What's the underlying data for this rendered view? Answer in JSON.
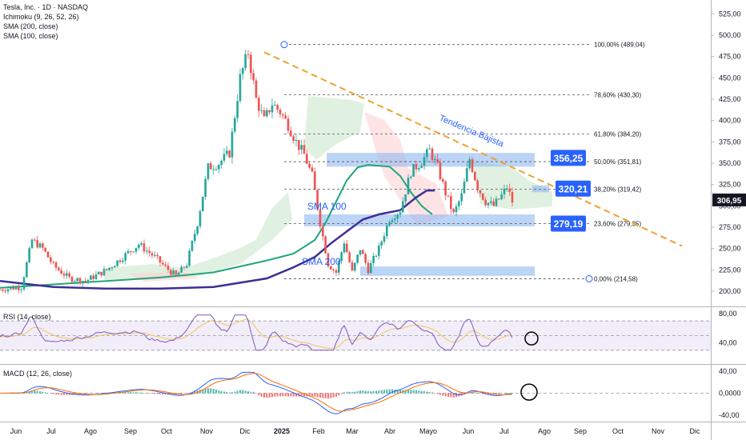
{
  "legend": {
    "main": "Tesla, Inc. · 1D · NASDAQ",
    "ichimoku": "Ichimoku (9, 26, 52, 26)",
    "sma200": "SMA (200, close)",
    "sma100": "SMA (100, close)",
    "rsi": "RSI (14, close)",
    "macd": "MACD (12, 26, close)"
  },
  "price_axis": {
    "ticks": [
      "525,00",
      "500,00",
      "475,00",
      "450,00",
      "425,00",
      "400,00",
      "375,00",
      "350,00",
      "325,00",
      "300,00",
      "275,00",
      "250,00",
      "225,00",
      "200,00"
    ],
    "current": "306,95"
  },
  "rsi_axis": {
    "ticks": [
      "80,00",
      "40,00"
    ]
  },
  "macd_axis": {
    "ticks": [
      "40,00",
      "0,0000",
      "-40,00"
    ]
  },
  "time_axis": {
    "labels": [
      "Jun",
      "Jul",
      "Ago",
      "Sep",
      "Oct",
      "Nov",
      "Dic",
      "2025",
      "Feb",
      "Mar",
      "Abr",
      "Mayo",
      "Jun",
      "Jul",
      "Ago",
      "Sep",
      "Oct",
      "Nov",
      "Dic"
    ]
  },
  "fib_levels": [
    {
      "label": "100,00% (489,04)",
      "value": 489.04
    },
    {
      "label": "78,60% (430,30)",
      "value": 430.3
    },
    {
      "label": "61,80% (384,20)",
      "value": 384.2
    },
    {
      "label": "50,00% (351,81)",
      "value": 351.81
    },
    {
      "label": "38,20% (319,42)",
      "value": 319.42
    },
    {
      "label": "23,60% (279,35)",
      "value": 279.35
    },
    {
      "label": "0,00% (214,58)",
      "value": 214.58
    }
  ],
  "zones": [
    {
      "label": "356,25",
      "low": 346,
      "high": 362,
      "label_value": 356.25
    },
    {
      "label": "320,21",
      "low": 316,
      "high": 324,
      "label_value": 320.21
    },
    {
      "label": "279,19",
      "low": 276,
      "high": 290,
      "label_value": 279.19
    },
    {
      "label": "",
      "low": 218,
      "high": 229
    }
  ],
  "annotations": {
    "trend": "Tendencia Bajista",
    "sma100": "SMA 100",
    "sma200": "SMA 200"
  },
  "colors": {
    "up": "#26a69a",
    "down": "#ef5350",
    "sma100": "#1fa67a",
    "sma200": "#3d2f94",
    "trendline": "#f0a030",
    "zone": "#90b8f0",
    "label_bg": "#2962ff",
    "rsi": "#7e57c2",
    "macd": "#2962ff",
    "signal": "#ff6d00",
    "cloud_green": "#c8e6c9",
    "cloud_red": "#ffcdd2"
  },
  "chart_data": {
    "type": "candlestick",
    "symbol": "Tesla, Inc. · 1D · NASDAQ",
    "ylim": [
      190,
      530
    ],
    "last_price": 306.95,
    "sma100_approx": [
      [
        0,
        204
      ],
      [
        20,
        208
      ],
      [
        40,
        212
      ],
      [
        60,
        216
      ],
      [
        80,
        222
      ],
      [
        100,
        236
      ],
      [
        110,
        244
      ],
      [
        118,
        260
      ],
      [
        122,
        280
      ],
      [
        126,
        305
      ],
      [
        130,
        330
      ],
      [
        134,
        345
      ],
      [
        138,
        348
      ],
      [
        146,
        346
      ],
      [
        150,
        335
      ],
      [
        154,
        316
      ],
      [
        158,
        300
      ],
      [
        162,
        290
      ]
    ],
    "sma200_approx": [
      [
        0,
        212
      ],
      [
        20,
        205
      ],
      [
        40,
        203
      ],
      [
        60,
        203
      ],
      [
        80,
        205
      ],
      [
        100,
        215
      ],
      [
        110,
        228
      ],
      [
        118,
        240
      ],
      [
        124,
        256
      ],
      [
        130,
        270
      ],
      [
        136,
        284
      ],
      [
        142,
        290
      ],
      [
        150,
        295
      ],
      [
        156,
        310
      ],
      [
        160,
        318
      ],
      [
        163,
        318
      ]
    ],
    "price_path": [
      [
        0,
        202
      ],
      [
        8,
        205
      ],
      [
        12,
        260
      ],
      [
        16,
        250
      ],
      [
        20,
        230
      ],
      [
        26,
        215
      ],
      [
        32,
        212
      ],
      [
        40,
        225
      ],
      [
        46,
        240
      ],
      [
        52,
        255
      ],
      [
        58,
        240
      ],
      [
        62,
        228
      ],
      [
        66,
        218
      ],
      [
        70,
        232
      ],
      [
        74,
        280
      ],
      [
        78,
        345
      ],
      [
        82,
        350
      ],
      [
        86,
        362
      ],
      [
        90,
        450
      ],
      [
        93,
        480
      ],
      [
        96,
        425
      ],
      [
        99,
        400
      ],
      [
        102,
        420
      ],
      [
        105,
        410
      ],
      [
        108,
        395
      ],
      [
        111,
        375
      ],
      [
        114,
        360
      ],
      [
        117,
        335
      ],
      [
        120,
        280
      ],
      [
        123,
        232
      ],
      [
        126,
        222
      ],
      [
        129,
        258
      ],
      [
        132,
        222
      ],
      [
        135,
        250
      ],
      [
        138,
        225
      ],
      [
        142,
        250
      ],
      [
        146,
        285
      ],
      [
        150,
        295
      ],
      [
        154,
        340
      ],
      [
        158,
        352
      ],
      [
        161,
        365
      ],
      [
        164,
        345
      ],
      [
        167,
        315
      ],
      [
        170,
        290
      ],
      [
        173,
        312
      ],
      [
        176,
        355
      ],
      [
        179,
        322
      ],
      [
        182,
        305
      ],
      [
        185,
        300
      ],
      [
        188,
        312
      ],
      [
        190,
        322
      ],
      [
        192,
        305
      ]
    ],
    "rsi": {
      "ylim": [
        20,
        90
      ],
      "upper": 70,
      "lower": 30
    },
    "macd": {
      "ylim": [
        -45,
        45
      ]
    }
  }
}
